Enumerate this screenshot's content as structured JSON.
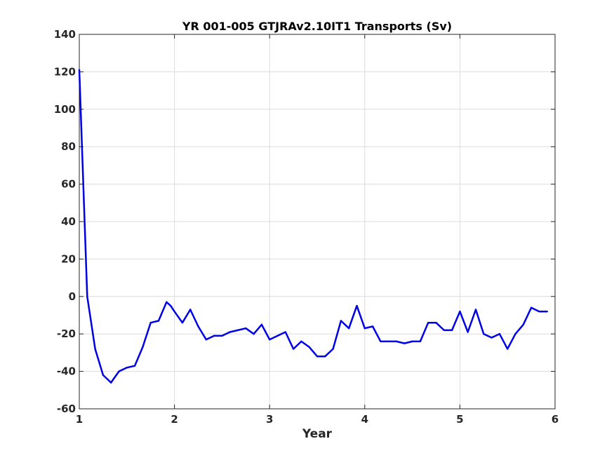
{
  "chart_data": {
    "type": "line",
    "title": "YR 001-005 GTJRAv2.10IT1 Transports (Sv)",
    "xlabel": "Year",
    "ylabel": "",
    "xlim": [
      1,
      6
    ],
    "ylim": [
      -60,
      140
    ],
    "xticks": [
      "1",
      "2",
      "3",
      "4",
      "5",
      "6"
    ],
    "yticks": [
      "-60",
      "-40",
      "-20",
      "0",
      "20",
      "40",
      "60",
      "80",
      "100",
      "120",
      "140"
    ],
    "grid": true,
    "legend": "none",
    "line_color": "#0000e6",
    "series": [
      {
        "x": [
          1.0,
          1.083,
          1.167,
          1.25,
          1.333,
          1.417,
          1.5,
          1.583,
          1.667,
          1.75,
          1.833,
          1.917,
          1.96,
          2.0,
          2.083,
          2.167,
          2.25,
          2.333,
          2.417,
          2.5,
          2.583,
          2.667,
          2.75,
          2.833,
          2.917,
          3.0,
          3.083,
          3.167,
          3.25,
          3.333,
          3.417,
          3.5,
          3.583,
          3.667,
          3.75,
          3.833,
          3.917,
          4.0,
          4.083,
          4.167,
          4.25,
          4.333,
          4.417,
          4.5,
          4.583,
          4.667,
          4.75,
          4.833,
          4.917,
          5.0,
          5.083,
          5.167,
          5.25,
          5.333,
          5.417,
          5.5,
          5.583,
          5.667,
          5.75,
          5.833,
          5.917
        ],
        "values": [
          121,
          0,
          -28,
          -42,
          -46,
          -40,
          -38,
          -37,
          -27,
          -14,
          -13,
          -3,
          -5,
          -8,
          -14,
          -7,
          -16,
          -23,
          -21,
          -21,
          -19,
          -18,
          -17,
          -20,
          -15,
          -23,
          -21,
          -19,
          -28,
          -24,
          -27,
          -32,
          -32,
          -28,
          -13,
          -17,
          -5,
          -17,
          -16,
          -24,
          -24,
          -24,
          -25,
          -24,
          -24,
          -14,
          -14,
          -18,
          -18,
          -8,
          -19,
          -7,
          -20,
          -22,
          -20,
          -28,
          -20,
          -15,
          -6,
          -8,
          -8
        ]
      }
    ]
  }
}
